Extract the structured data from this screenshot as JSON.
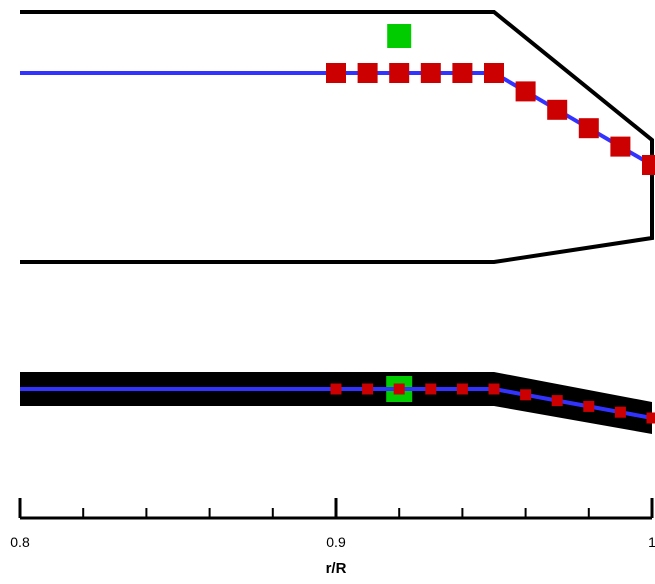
{
  "chart_data": {
    "type": "diagram",
    "xlabel": "r/R",
    "x_range": [
      0.8,
      1.0
    ],
    "major_ticks": [
      {
        "value": 0.8,
        "label": "0.8"
      },
      {
        "value": 0.9,
        "label": "0.9"
      },
      {
        "value": 1.0,
        "label": "1"
      }
    ],
    "minor_ticks": [
      0.82,
      0.84,
      0.86,
      0.88,
      0.92,
      0.94,
      0.96,
      0.98
    ],
    "top_view": {
      "centerline_r": [
        0.8,
        0.95,
        0.96,
        0.97,
        0.98,
        0.99,
        1.0
      ],
      "square_markers_r": [
        0.9,
        0.91,
        0.92,
        0.93,
        0.94,
        0.95,
        0.96,
        0.97,
        0.98,
        0.99,
        1.0
      ],
      "highlight_marker_r": 0.92,
      "outline_kink_r": 0.95
    },
    "bottom_view": {
      "centerline_r": [
        0.8,
        0.95,
        0.96,
        0.97,
        0.98,
        0.99,
        1.0
      ],
      "square_markers_r": [
        0.9,
        0.91,
        0.92,
        0.93,
        0.94,
        0.95,
        0.96,
        0.97,
        0.98,
        0.99,
        1.0
      ],
      "highlight_marker_r": 0.92,
      "taper_start_r": 0.95
    },
    "colors": {
      "outline": "#000000",
      "centerline": "#3333ff",
      "marker": "#cc0000",
      "highlight": "#00cc00"
    }
  }
}
